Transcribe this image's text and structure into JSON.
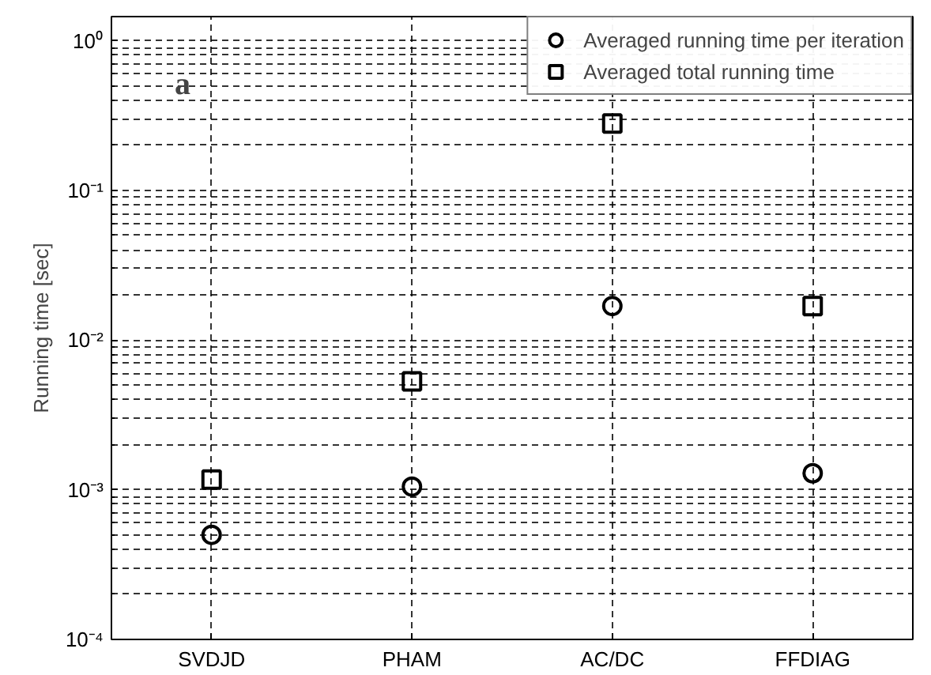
{
  "chart_data": {
    "type": "scatter",
    "ylabel": "Running time [sec]",
    "annotations": [
      "a"
    ],
    "categories": [
      "SVDJD",
      "PHAM",
      "AC/DC",
      "FFDIAG"
    ],
    "series": [
      {
        "name": "Averaged running time per iteration",
        "color": "#000000",
        "marker": "circle",
        "values": [
          0.0005,
          0.00105,
          0.0169,
          0.00129
        ]
      },
      {
        "name": "Averaged total running time",
        "color": "#000000",
        "marker": "square",
        "values": [
          0.00117,
          0.0053,
          0.28,
          0.0169
        ]
      }
    ],
    "log": "y",
    "ylim": [
      0.0001,
      1.45
    ],
    "yticks": [
      {
        "value": 0.0001,
        "label": "10⁻⁴"
      },
      {
        "value": 0.001,
        "label": "10⁻³"
      },
      {
        "value": 0.01,
        "label": "10⁻²"
      },
      {
        "value": 0.1,
        "label": "10⁻¹"
      },
      {
        "value": 1,
        "label": "10⁰"
      }
    ],
    "grid": true,
    "legend": "top right"
  }
}
